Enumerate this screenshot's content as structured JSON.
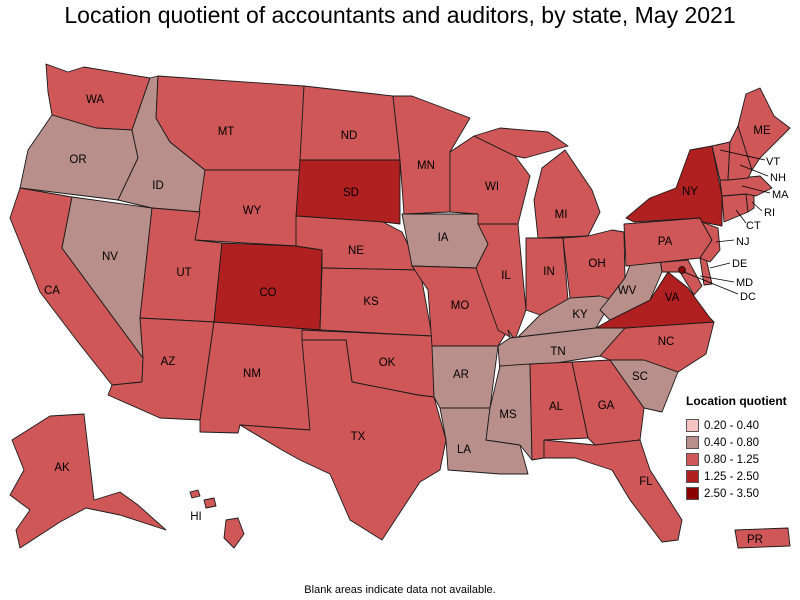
{
  "title": "Location quotient of accountants and auditors, by state, May 2021",
  "footnote": "Blank areas indicate data not available.",
  "legend": {
    "title": "Location quotient",
    "items": [
      {
        "label": "0.20 - 0.40",
        "color": "#f6c3c3"
      },
      {
        "label": "0.40 - 0.80",
        "color": "#b98f8c"
      },
      {
        "label": "0.80 - 1.25",
        "color": "#cf5757"
      },
      {
        "label": "1.25 - 2.50",
        "color": "#b02020"
      },
      {
        "label": "2.50 - 3.50",
        "color": "#8b0000"
      }
    ]
  },
  "states": {
    "WA": {
      "label": "WA",
      "class": "0.80 - 1.25"
    },
    "OR": {
      "label": "OR",
      "class": "0.40 - 0.80"
    },
    "CA": {
      "label": "CA",
      "class": "0.80 - 1.25"
    },
    "NV": {
      "label": "NV",
      "class": "0.40 - 0.80"
    },
    "ID": {
      "label": "ID",
      "class": "0.40 - 0.80"
    },
    "MT": {
      "label": "MT",
      "class": "0.80 - 1.25"
    },
    "WY": {
      "label": "WY",
      "class": "0.80 - 1.25"
    },
    "UT": {
      "label": "UT",
      "class": "0.80 - 1.25"
    },
    "AZ": {
      "label": "AZ",
      "class": "0.80 - 1.25"
    },
    "CO": {
      "label": "CO",
      "class": "1.25 - 2.50"
    },
    "NM": {
      "label": "NM",
      "class": "0.80 - 1.25"
    },
    "ND": {
      "label": "ND",
      "class": "0.80 - 1.25"
    },
    "SD": {
      "label": "SD",
      "class": "1.25 - 2.50"
    },
    "NE": {
      "label": "NE",
      "class": "0.80 - 1.25"
    },
    "KS": {
      "label": "KS",
      "class": "0.80 - 1.25"
    },
    "OK": {
      "label": "OK",
      "class": "0.80 - 1.25"
    },
    "TX": {
      "label": "TX",
      "class": "0.80 - 1.25"
    },
    "MN": {
      "label": "MN",
      "class": "0.80 - 1.25"
    },
    "IA": {
      "label": "IA",
      "class": "0.40 - 0.80"
    },
    "MO": {
      "label": "MO",
      "class": "0.80 - 1.25"
    },
    "AR": {
      "label": "AR",
      "class": "0.40 - 0.80"
    },
    "LA": {
      "label": "LA",
      "class": "0.40 - 0.80"
    },
    "WI": {
      "label": "WI",
      "class": "0.80 - 1.25"
    },
    "IL": {
      "label": "IL",
      "class": "0.80 - 1.25"
    },
    "MI": {
      "label": "MI",
      "class": "0.80 - 1.25"
    },
    "IN": {
      "label": "IN",
      "class": "0.80 - 1.25"
    },
    "OH": {
      "label": "OH",
      "class": "0.80 - 1.25"
    },
    "KY": {
      "label": "KY",
      "class": "0.40 - 0.80"
    },
    "TN": {
      "label": "TN",
      "class": "0.40 - 0.80"
    },
    "MS": {
      "label": "MS",
      "class": "0.40 - 0.80"
    },
    "AL": {
      "label": "AL",
      "class": "0.80 - 1.25"
    },
    "GA": {
      "label": "GA",
      "class": "0.80 - 1.25"
    },
    "FL": {
      "label": "FL",
      "class": "0.80 - 1.25"
    },
    "SC": {
      "label": "SC",
      "class": "0.40 - 0.80"
    },
    "NC": {
      "label": "NC",
      "class": "0.80 - 1.25"
    },
    "VA": {
      "label": "VA",
      "class": "1.25 - 2.50"
    },
    "WV": {
      "label": "WV",
      "class": "0.40 - 0.80"
    },
    "PA": {
      "label": "PA",
      "class": "0.80 - 1.25"
    },
    "NY": {
      "label": "NY",
      "class": "1.25 - 2.50"
    },
    "NJ": {
      "label": "NJ",
      "class": "0.80 - 1.25"
    },
    "DE": {
      "label": "DE",
      "class": "0.80 - 1.25"
    },
    "MD": {
      "label": "MD",
      "class": "0.80 - 1.25"
    },
    "DC": {
      "label": "DC",
      "class": "2.50 - 3.50"
    },
    "CT": {
      "label": "CT",
      "class": "0.80 - 1.25"
    },
    "RI": {
      "label": "RI",
      "class": "0.80 - 1.25"
    },
    "MA": {
      "label": "MA",
      "class": "0.80 - 1.25"
    },
    "VT": {
      "label": "VT",
      "class": "0.80 - 1.25"
    },
    "NH": {
      "label": "NH",
      "class": "0.80 - 1.25"
    },
    "ME": {
      "label": "ME",
      "class": "0.80 - 1.25"
    },
    "AK": {
      "label": "AK",
      "class": "0.80 - 1.25"
    },
    "HI": {
      "label": "HI",
      "class": "0.80 - 1.25"
    },
    "PR": {
      "label": "PR",
      "class": "0.80 - 1.25"
    }
  }
}
